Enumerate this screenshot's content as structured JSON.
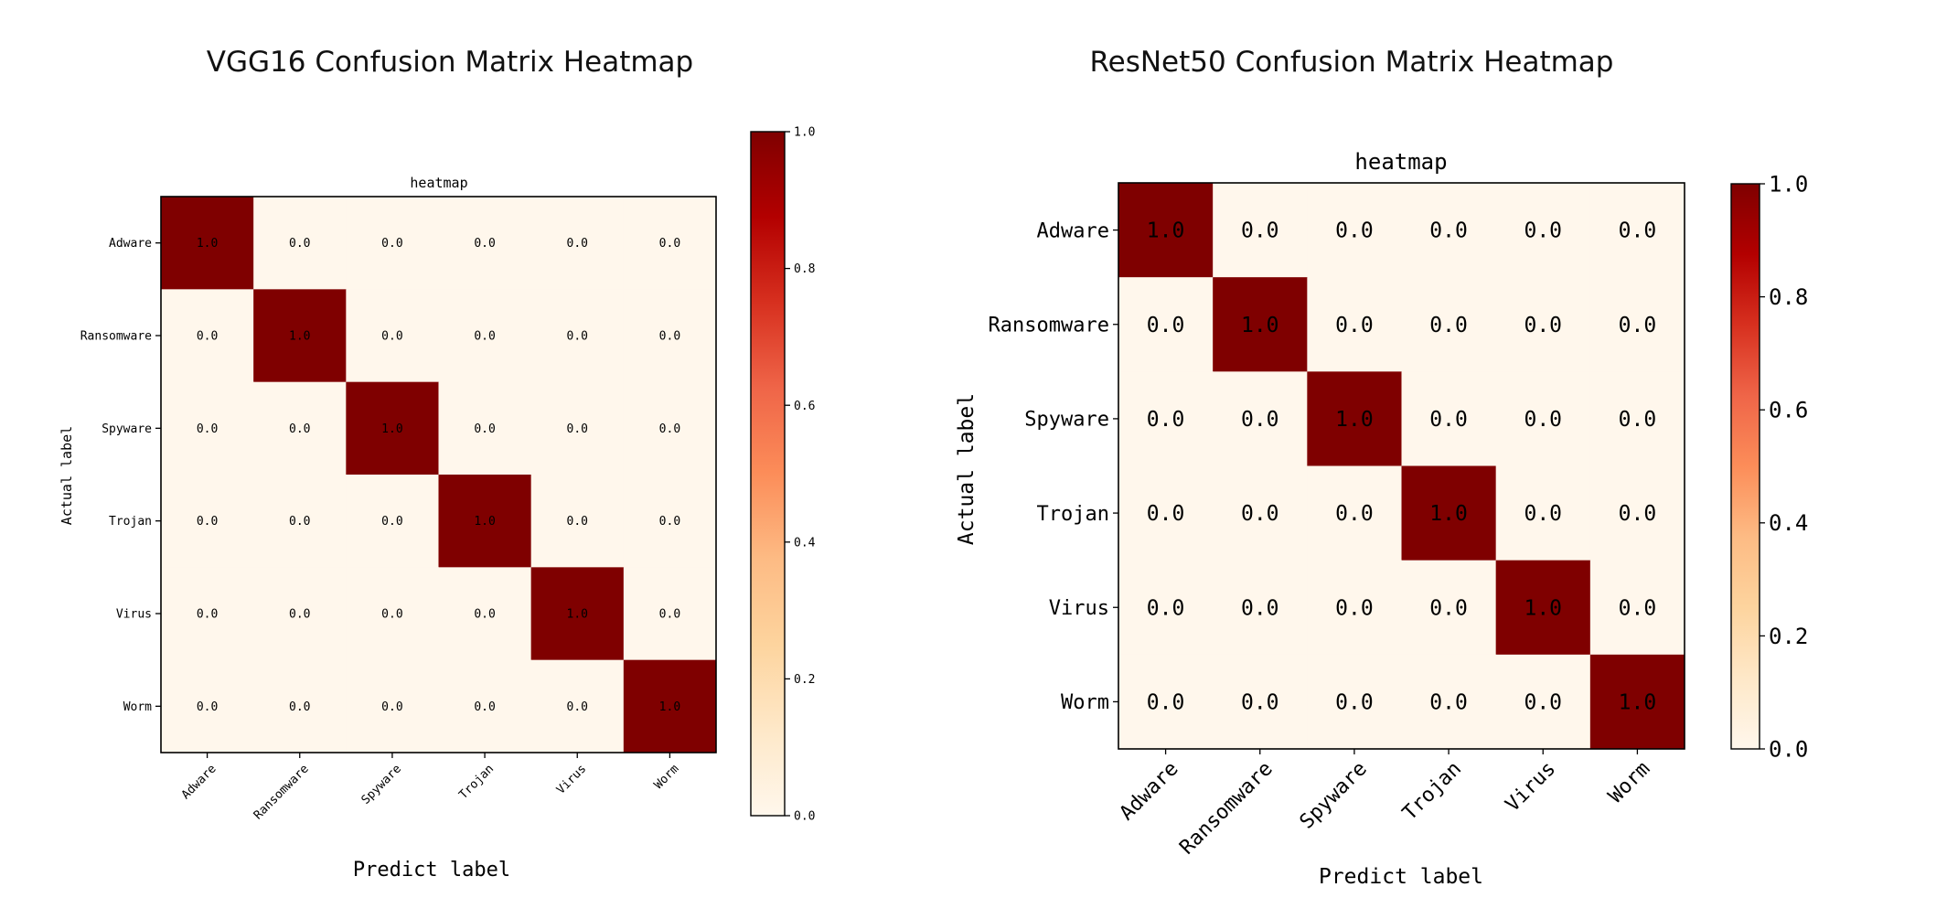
{
  "chart_data": [
    {
      "type": "heatmap",
      "title": "VGG16 Confusion Matrix Heatmap",
      "subtitle": "heatmap",
      "xlabel": "Predict label",
      "ylabel": "Actual label",
      "x_categories": [
        "Adware",
        "Ransomware",
        "Spyware",
        "Trojan",
        "Virus",
        "Worm"
      ],
      "y_categories": [
        "Adware",
        "Ransomware",
        "Spyware",
        "Trojan",
        "Virus",
        "Worm"
      ],
      "values": [
        [
          1.0,
          0.0,
          0.0,
          0.0,
          0.0,
          0.0
        ],
        [
          0.0,
          1.0,
          0.0,
          0.0,
          0.0,
          0.0
        ],
        [
          0.0,
          0.0,
          1.0,
          0.0,
          0.0,
          0.0
        ],
        [
          0.0,
          0.0,
          0.0,
          1.0,
          0.0,
          0.0
        ],
        [
          0.0,
          0.0,
          0.0,
          0.0,
          1.0,
          0.0
        ],
        [
          0.0,
          0.0,
          0.0,
          0.0,
          0.0,
          1.0
        ]
      ],
      "colormap": "OrRd",
      "colorbar": {
        "range": [
          0.0,
          1.0
        ],
        "ticks": [
          "0.0",
          "0.2",
          "0.4",
          "0.6",
          "0.8",
          "1.0"
        ]
      },
      "xtick_rotation": "45deg",
      "grid": false
    },
    {
      "type": "heatmap",
      "title": "ResNet50 Confusion Matrix Heatmap",
      "subtitle": "heatmap",
      "xlabel": "Predict label",
      "ylabel": "Actual label",
      "x_categories": [
        "Adware",
        "Ransomware",
        "Spyware",
        "Trojan",
        "Virus",
        "Worm"
      ],
      "y_categories": [
        "Adware",
        "Ransomware",
        "Spyware",
        "Trojan",
        "Virus",
        "Worm"
      ],
      "values": [
        [
          1.0,
          0.0,
          0.0,
          0.0,
          0.0,
          0.0
        ],
        [
          0.0,
          1.0,
          0.0,
          0.0,
          0.0,
          0.0
        ],
        [
          0.0,
          0.0,
          1.0,
          0.0,
          0.0,
          0.0
        ],
        [
          0.0,
          0.0,
          0.0,
          1.0,
          0.0,
          0.0
        ],
        [
          0.0,
          0.0,
          0.0,
          0.0,
          1.0,
          0.0
        ],
        [
          0.0,
          0.0,
          0.0,
          0.0,
          0.0,
          1.0
        ]
      ],
      "colormap": "OrRd",
      "colorbar": {
        "range": [
          0.0,
          1.0
        ],
        "ticks": [
          "0.0",
          "0.2",
          "0.4",
          "0.6",
          "0.8",
          "1.0"
        ]
      },
      "xtick_rotation": "45deg",
      "grid": false
    }
  ],
  "colors": {
    "cmap_stops": [
      "#fff7ec",
      "#fee8c8",
      "#fdd49e",
      "#fdbb84",
      "#fc8d59",
      "#ef6548",
      "#d7301f",
      "#b30000",
      "#7f0000"
    ]
  }
}
